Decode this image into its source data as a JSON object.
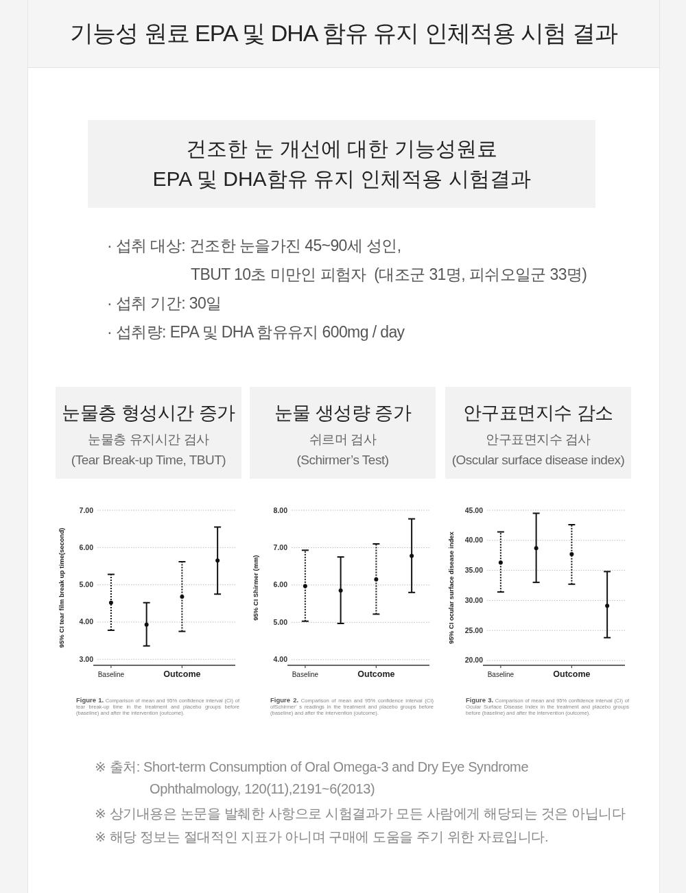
{
  "chart_data": [
    {
      "type": "other",
      "title": "기능성 원료 EPA 및 DHA 함유 유지 인체적용 시험 결과",
      "subtitle": "건조한 눈 개선에 대한 기능성원료\nEPA 및 DHA함유 유지 인체적용 시험결과",
      "annotations": [
        "· 섭취 대상: 건조한 눈을가진 45~90세 성인,",
        "TBUT 10초 미만인 피험자  (대조군 31명, 피쉬오일군 33명)",
        "· 섭취 기간: 30일",
        "· 섭취량: EPA 및 DHA 함유유지 600mg / day"
      ]
    },
    {
      "type": "scatter",
      "title": "눈물층 형성시간 증가",
      "subtitle": "눈물층 유지시간 검사\n(Tear Break-up Time, TBUT)",
      "ylabel": "95% CI tear film break up time(second)",
      "categories": [
        "Baseline",
        null,
        "Outcome",
        null
      ],
      "ylim": [
        2.84,
        7
      ],
      "yticks": [
        {
          "value": 3,
          "label": "3.00"
        },
        {
          "value": 4,
          "label": "4.00"
        },
        {
          "value": 5,
          "label": "5.00"
        },
        {
          "value": 6,
          "label": "6.00"
        },
        {
          "value": 7,
          "label": "7.00"
        }
      ],
      "grid": "y",
      "marker": "circle",
      "series": [
        {
          "color": "#111111",
          "line_style": "dotted",
          "values": [
            4.52,
            null,
            4.68,
            null
          ],
          "errors": [
            [
              3.78,
              5.28
            ],
            null,
            [
              3.75,
              5.62
            ],
            null
          ]
        },
        {
          "color": "#111111",
          "line_style": "solid",
          "values": [
            null,
            3.93,
            null,
            5.65
          ],
          "errors": [
            null,
            [
              3.36,
              4.52
            ],
            null,
            [
              4.75,
              6.55
            ]
          ]
        }
      ],
      "annotations": [
        "Figure 1. Comparison of mean and 95% confidence interval (CI) of tear break-up time in the treatment and placebo groups before (baseline) and after the intervention (outcome)."
      ]
    },
    {
      "type": "scatter",
      "title": "눈물 생성량 증가",
      "subtitle": "쉬르머 검사\n(Schirmer’s Test)",
      "ylabel": "95% CI Shirmer (mm)",
      "categories": [
        "Baseline",
        null,
        "Outcome",
        null
      ],
      "ylim": [
        3.85,
        8
      ],
      "yticks": [
        {
          "value": 4,
          "label": "4.00"
        },
        {
          "value": 5,
          "label": "5.00"
        },
        {
          "value": 6,
          "label": "6.00"
        },
        {
          "value": 7,
          "label": "7.00"
        },
        {
          "value": 8,
          "label": "8.00"
        }
      ],
      "grid": "y",
      "marker": "circle",
      "series": [
        {
          "color": "#111111",
          "line_style": "dotted",
          "values": [
            5.97,
            null,
            6.15,
            null
          ],
          "errors": [
            [
              5.03,
              6.93
            ],
            null,
            [
              5.22,
              7.1
            ],
            null
          ]
        },
        {
          "color": "#111111",
          "line_style": "solid",
          "values": [
            null,
            5.85,
            null,
            6.78
          ],
          "errors": [
            null,
            [
              4.97,
              6.75
            ],
            null,
            [
              5.8,
              7.77
            ]
          ]
        }
      ],
      "annotations": [
        "Figure 2. Comparison of mean and 95% confidence interval (CI) ofSchirmer’ s readings in the treatment and placebo groups before (baseline) and after the intervention (outcome)."
      ]
    },
    {
      "type": "scatter",
      "title": "안구표면지수 감소",
      "subtitle": "안구표면지수 검사\n(Oscular surface disease index)",
      "ylabel": "95% CI ocular surface disease index",
      "categories": [
        "Baseline",
        null,
        "Outcome",
        null
      ],
      "ylim": [
        19.2,
        45
      ],
      "yticks": [
        {
          "value": 20,
          "label": "20.00"
        },
        {
          "value": 25,
          "label": "25.00"
        },
        {
          "value": 30,
          "label": "30.00"
        },
        {
          "value": 35,
          "label": "35.00"
        },
        {
          "value": 40,
          "label": "40.00"
        },
        {
          "value": 45,
          "label": "45.00"
        }
      ],
      "grid": "y",
      "marker": "circle",
      "series": [
        {
          "color": "#111111",
          "line_style": "dotted",
          "values": [
            36.3,
            null,
            37.7,
            null
          ],
          "errors": [
            [
              31.4,
              41.4
            ],
            null,
            [
              32.7,
              42.6
            ],
            null
          ]
        },
        {
          "color": "#111111",
          "line_style": "solid",
          "values": [
            null,
            38.7,
            null,
            29.1
          ],
          "errors": [
            null,
            [
              33.0,
              44.5
            ],
            null,
            [
              23.8,
              34.8
            ]
          ]
        }
      ],
      "annotations": [
        "Figure 3. Comparison of mean and 95% confidence interval (CI) of Ocular Surface Disease Index in the treatment and placebo groups before (baseline) and after the intervention (outcome)."
      ]
    },
    {
      "type": "other",
      "annotations": [
        "※ 출처: Short-term Consumption of Oral Omega-3 and Dry Eye Syndrome",
        "Ophthalmology, 120(11),2191~6(2013)",
        "※ 상기내용은 논문을 발췌한 사항으로 시험결과가 모든 사람에게 해당되는 것은 아닙니다",
        "※ 해당 정보는 절대적인 지표가 아니며 구매에 도움을 주기 위한 자료입니다."
      ]
    }
  ]
}
